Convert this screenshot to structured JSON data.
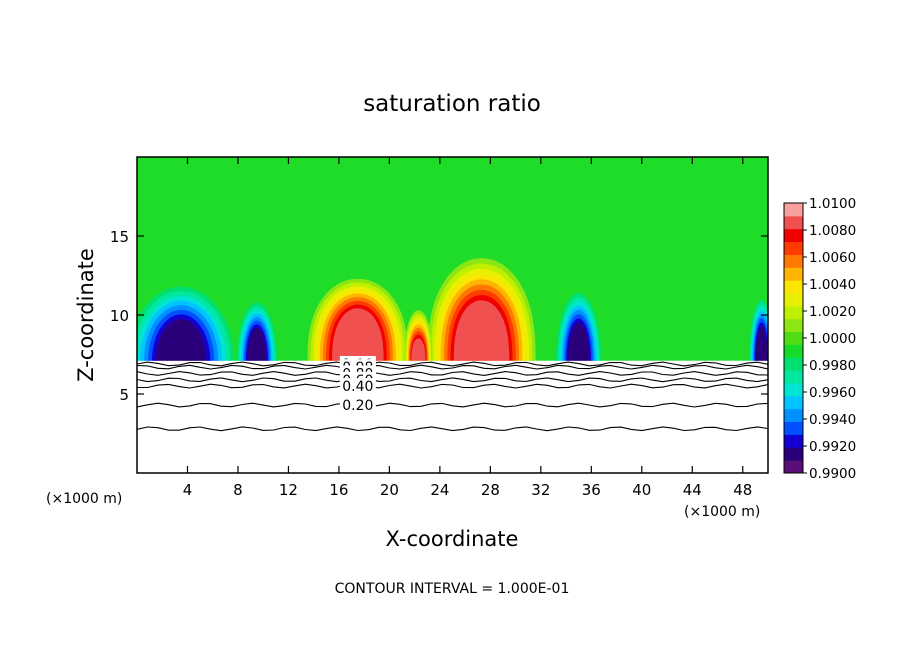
{
  "chart_data": {
    "type": "heatmap",
    "title": "saturation ratio",
    "xlabel": "X-coordinate",
    "ylabel": "Z-coordinate",
    "x_unit": "(×1000 m)",
    "xlim": [
      0,
      50
    ],
    "ylim": [
      0,
      20
    ],
    "x_ticks": [
      4,
      8,
      12,
      16,
      20,
      24,
      28,
      32,
      36,
      40,
      44,
      48
    ],
    "y_ticks": [
      5,
      10,
      15
    ],
    "colorbar": {
      "min": 0.99,
      "max": 1.01,
      "step": 0.001,
      "labels": [
        "1.0100",
        "1.0080",
        "1.0060",
        "1.0040",
        "1.0020",
        "1.0000",
        "0.9980",
        "0.9960",
        "0.9940",
        "0.9920",
        "0.9900"
      ],
      "colors": [
        "#5a0f78",
        "#2a007a",
        "#1400d2",
        "#0050ff",
        "#0090ff",
        "#00c4ff",
        "#00e4d2",
        "#00e8a0",
        "#00e070",
        "#14dc28",
        "#50dc14",
        "#8ce614",
        "#bef000",
        "#e6f000",
        "#fae600",
        "#ffb400",
        "#ff7800",
        "#ff3c00",
        "#f00000",
        "#f05050",
        "#f8a0a0"
      ]
    },
    "contour_interval": "CONTOUR INTERVAL = 1.000E-01",
    "contour_labels": [
      "1.00",
      "1.00",
      "1.00",
      "0.98",
      "0.80",
      "0.60",
      "0.40",
      "0.20"
    ],
    "cloud_base_z": 7.1,
    "contour_levels_below_cloud": [
      {
        "level": "1.00",
        "z": 6.9
      },
      {
        "level": "0.98",
        "z": 6.7
      },
      {
        "level": "0.80",
        "z": 6.3
      },
      {
        "level": "0.60",
        "z": 5.9
      },
      {
        "level": "0.40",
        "z": 5.5
      },
      {
        "level": "0.20",
        "z": 4.3
      },
      {
        "level": "",
        "z": 2.8
      }
    ],
    "peaks": [
      {
        "x_center": 17.5,
        "z_top": 12.3,
        "z_core": 10.2,
        "half_width": 4.0
      },
      {
        "x_center": 27.3,
        "z_top": 13.6,
        "z_core": 10.6,
        "half_width": 4.3
      },
      {
        "x_center": 22.3,
        "z_top": 10.3,
        "z_core": 8.3,
        "half_width": 1.1
      }
    ],
    "dry_regions": [
      {
        "x_center": 3.5,
        "z_center": 9.3,
        "half_width": 4.2
      },
      {
        "x_center": 9.5,
        "z_center": 8.3,
        "half_width": 1.6
      },
      {
        "x_center": 35.0,
        "z_center": 8.9,
        "half_width": 1.8
      },
      {
        "x_center": 49.5,
        "z_center": 8.5,
        "half_width": 1.0
      }
    ]
  }
}
